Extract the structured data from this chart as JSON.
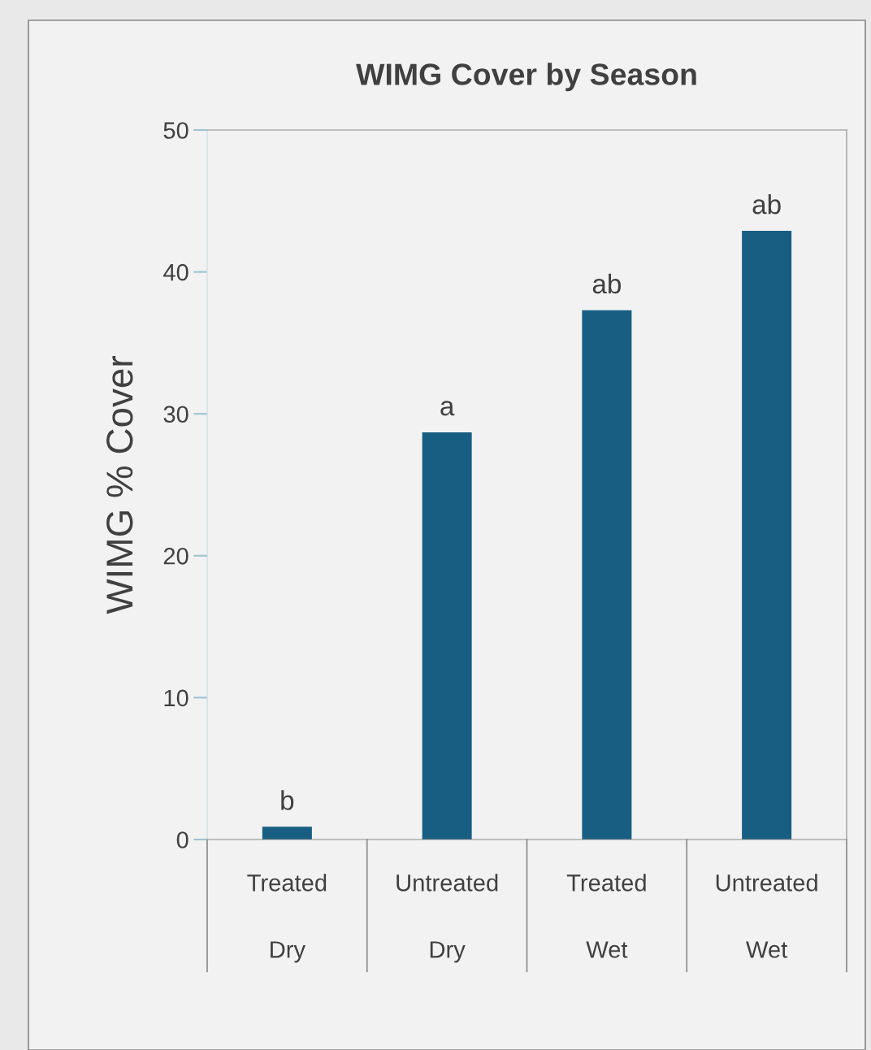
{
  "chart_data": {
    "type": "bar",
    "title": "WIMG Cover by Season",
    "ylabel": "WIMG % Cover",
    "categories": [
      "Treated\nDry",
      "Untreated\nDry",
      "Treated\nWet",
      "Untreated\nWet"
    ],
    "values": [
      0.9,
      28.7,
      37.3,
      42.9
    ],
    "color": "#175e82",
    "ylim": [
      0,
      50
    ],
    "yticks": [
      0,
      10,
      20,
      30,
      40,
      50
    ],
    "grid": false,
    "annotations": [
      {
        "text": "b",
        "x": "Treated\nDry",
        "y": 0.9
      },
      {
        "text": "a",
        "x": "Untreated\nDry",
        "y": 28.7
      },
      {
        "text": "ab",
        "x": "Treated\nWet",
        "y": 37.3
      },
      {
        "text": "ab",
        "x": "Untreated\nWet",
        "y": 42.9
      }
    ]
  }
}
